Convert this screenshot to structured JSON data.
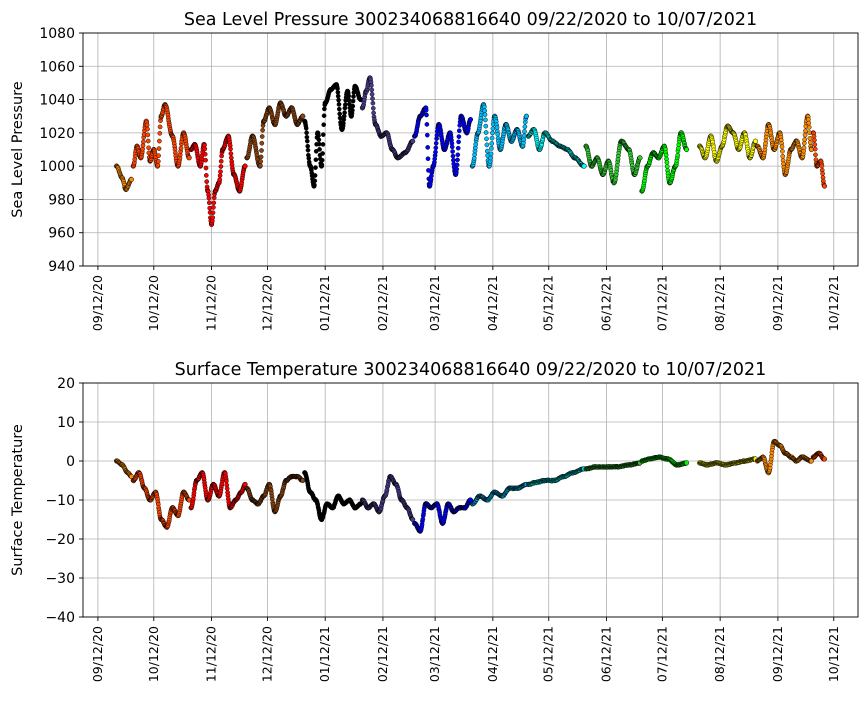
{
  "chart_data": [
    {
      "type": "scatter",
      "title": "Sea Level Pressure 300234068816640  09/22/2020 to 10/07/2021",
      "xlabel": "",
      "ylabel": "Sea Level Pressure",
      "ylim": [
        940,
        1080
      ],
      "yticks": [
        940,
        960,
        980,
        1000,
        1020,
        1040,
        1060,
        1080
      ],
      "xlim": [
        "2020-09-04",
        "2021-10-25"
      ],
      "xtick_labels": [
        "09/12/20",
        "10/12/20",
        "11/12/20",
        "12/12/20",
        "01/12/21",
        "02/12/21",
        "03/12/21",
        "04/12/21",
        "05/12/21",
        "06/12/21",
        "07/12/21",
        "08/12/21",
        "09/12/21",
        "10/12/21"
      ],
      "xtick_dates": [
        "2020-09-12",
        "2020-10-12",
        "2020-11-12",
        "2020-12-12",
        "2021-01-12",
        "2021-02-12",
        "2021-03-12",
        "2021-04-12",
        "2021-05-12",
        "2021-06-12",
        "2021-07-12",
        "2021-08-12",
        "2021-09-12",
        "2021-10-12"
      ],
      "grid": true,
      "color_note": "points colored by month",
      "series": [
        {
          "color": "#ff8c00",
          "x": [
            "2020-09-22",
            "2020-09-25",
            "2020-09-27",
            "2020-09-30"
          ],
          "y": [
            1000,
            993,
            986,
            992
          ]
        },
        {
          "color": "#ff4500",
          "x": [
            "2020-10-01",
            "2020-10-03",
            "2020-10-05",
            "2020-10-08",
            "2020-10-10",
            "2020-10-12",
            "2020-10-14",
            "2020-10-16",
            "2020-10-18",
            "2020-10-22",
            "2020-10-25",
            "2020-10-28",
            "2020-10-31"
          ],
          "y": [
            1000,
            1012,
            1005,
            1027,
            1003,
            1010,
            1000,
            1030,
            1037,
            1018,
            1000,
            1020,
            1005
          ]
        },
        {
          "color": "#ff0000",
          "x": [
            "2020-11-01",
            "2020-11-03",
            "2020-11-06",
            "2020-11-08",
            "2020-11-10",
            "2020-11-12",
            "2020-11-14",
            "2020-11-16",
            "2020-11-18",
            "2020-11-21",
            "2020-11-24",
            "2020-11-27",
            "2020-11-30"
          ],
          "y": [
            1010,
            1013,
            1000,
            1013,
            985,
            965,
            985,
            990,
            1010,
            1018,
            995,
            985,
            1000
          ]
        },
        {
          "color": "#8b4513",
          "x": [
            "2020-12-01",
            "2020-12-04",
            "2020-12-08",
            "2020-12-10",
            "2020-12-13",
            "2020-12-16",
            "2020-12-19",
            "2020-12-22",
            "2020-12-25",
            "2020-12-28",
            "2020-12-31"
          ],
          "y": [
            1005,
            1018,
            1000,
            1027,
            1035,
            1025,
            1038,
            1030,
            1035,
            1025,
            1030
          ]
        },
        {
          "color": "#000000",
          "x": [
            "2021-01-01",
            "2021-01-04",
            "2021-01-06",
            "2021-01-08",
            "2021-01-10",
            "2021-01-12",
            "2021-01-15",
            "2021-01-18",
            "2021-01-21",
            "2021-01-24",
            "2021-01-26",
            "2021-01-28",
            "2021-01-31"
          ],
          "y": [
            1027,
            1000,
            988,
            1020,
            1000,
            1038,
            1046,
            1049,
            1022,
            1045,
            1030,
            1048,
            1040
          ]
        },
        {
          "color": "#483d8b",
          "x": [
            "2021-02-01",
            "2021-02-03",
            "2021-02-05",
            "2021-02-08",
            "2021-02-11",
            "2021-02-14",
            "2021-02-17",
            "2021-02-20",
            "2021-02-24",
            "2021-02-28"
          ],
          "y": [
            1035,
            1045,
            1053,
            1025,
            1018,
            1020,
            1010,
            1005,
            1008,
            1015
          ]
        },
        {
          "color": "#0000ff",
          "x": [
            "2021-03-01",
            "2021-03-04",
            "2021-03-07",
            "2021-03-09",
            "2021-03-11",
            "2021-03-14",
            "2021-03-17",
            "2021-03-20",
            "2021-03-23",
            "2021-03-26",
            "2021-03-29",
            "2021-03-31"
          ],
          "y": [
            1018,
            1030,
            1035,
            988,
            1000,
            1025,
            1010,
            1020,
            995,
            1030,
            1020,
            1028
          ]
        },
        {
          "color": "#00bfff",
          "x": [
            "2021-04-01",
            "2021-04-04",
            "2021-04-07",
            "2021-04-10",
            "2021-04-13",
            "2021-04-16",
            "2021-04-19",
            "2021-04-22",
            "2021-04-25",
            "2021-04-28",
            "2021-04-30"
          ],
          "y": [
            1000,
            1020,
            1037,
            1000,
            1030,
            1010,
            1025,
            1015,
            1022,
            1012,
            1030
          ]
        },
        {
          "color": "#00ffff",
          "x": [
            "2021-05-01",
            "2021-05-04",
            "2021-05-07",
            "2021-05-10",
            "2021-05-14",
            "2021-05-18",
            "2021-05-22",
            "2021-05-26",
            "2021-05-31"
          ],
          "y": [
            1018,
            1022,
            1010,
            1020,
            1015,
            1012,
            1010,
            1005,
            1000
          ]
        },
        {
          "color": "#32cd32",
          "x": [
            "2021-06-01",
            "2021-06-04",
            "2021-06-07",
            "2021-06-10",
            "2021-06-13",
            "2021-06-16",
            "2021-06-20",
            "2021-06-24",
            "2021-06-27",
            "2021-06-30"
          ],
          "y": [
            1012,
            1000,
            1005,
            995,
            1003,
            990,
            1015,
            1010,
            995,
            1005
          ]
        },
        {
          "color": "#00ff00",
          "x": [
            "2021-07-01",
            "2021-07-04",
            "2021-07-07",
            "2021-07-10",
            "2021-07-13",
            "2021-07-16",
            "2021-07-19",
            "2021-07-22",
            "2021-07-25"
          ],
          "y": [
            985,
            1000,
            1008,
            1005,
            1012,
            990,
            1000,
            1020,
            1010
          ]
        },
        {
          "color": "#ffff00",
          "x": [
            "2021-08-01",
            "2021-08-04",
            "2021-08-07",
            "2021-08-10",
            "2021-08-13",
            "2021-08-16",
            "2021-08-19",
            "2021-08-22",
            "2021-08-25",
            "2021-08-28",
            "2021-08-31"
          ],
          "y": [
            1012,
            1005,
            1018,
            1003,
            1012,
            1024,
            1020,
            1010,
            1020,
            1005,
            1015
          ]
        },
        {
          "color": "#ff8c00",
          "x": [
            "2021-09-01",
            "2021-09-04",
            "2021-09-07",
            "2021-09-10",
            "2021-09-13",
            "2021-09-16",
            "2021-09-19",
            "2021-09-22",
            "2021-09-25",
            "2021-09-28",
            "2021-09-30"
          ],
          "y": [
            1012,
            1005,
            1025,
            1010,
            1020,
            995,
            1010,
            1015,
            1005,
            1030,
            1010
          ]
        },
        {
          "color": "#ff4500",
          "x": [
            "2021-10-01",
            "2021-10-03",
            "2021-10-05",
            "2021-10-07"
          ],
          "y": [
            1020,
            1000,
            1003,
            988
          ]
        }
      ]
    },
    {
      "type": "scatter",
      "title": "Surface Temperature 300234068816640  09/22/2020 to 10/07/2021",
      "xlabel": "",
      "ylabel": "Surface Temperature",
      "ylim": [
        -40,
        20
      ],
      "yticks": [
        -40,
        -30,
        -20,
        -10,
        0,
        10,
        20
      ],
      "ytick_labels": [
        "−40",
        "−30",
        "−20",
        "−10",
        "0",
        "10",
        "20"
      ],
      "xlim": [
        "2020-09-04",
        "2021-10-25"
      ],
      "xtick_labels": [
        "09/12/20",
        "10/12/20",
        "11/12/20",
        "12/12/20",
        "01/12/21",
        "02/12/21",
        "03/12/21",
        "04/12/21",
        "05/12/21",
        "06/12/21",
        "07/12/21",
        "08/12/21",
        "09/12/21",
        "10/12/21"
      ],
      "xtick_dates": [
        "2020-09-12",
        "2020-10-12",
        "2020-11-12",
        "2020-12-12",
        "2021-01-12",
        "2021-02-12",
        "2021-03-12",
        "2021-04-12",
        "2021-05-12",
        "2021-06-12",
        "2021-07-12",
        "2021-08-12",
        "2021-09-12",
        "2021-10-12"
      ],
      "grid": true,
      "color_note": "points colored by month",
      "series": [
        {
          "color": "#ff8c00",
          "x": [
            "2020-09-22",
            "2020-09-25",
            "2020-09-28",
            "2020-09-30"
          ],
          "y": [
            0,
            -1,
            -3,
            -4
          ]
        },
        {
          "color": "#ff4500",
          "x": [
            "2020-10-01",
            "2020-10-04",
            "2020-10-07",
            "2020-10-10",
            "2020-10-13",
            "2020-10-16",
            "2020-10-19",
            "2020-10-22",
            "2020-10-25",
            "2020-10-28",
            "2020-10-31"
          ],
          "y": [
            -5,
            -3,
            -7,
            -10,
            -8,
            -15,
            -17,
            -12,
            -14,
            -8,
            -10
          ]
        },
        {
          "color": "#ff0000",
          "x": [
            "2020-11-01",
            "2020-11-04",
            "2020-11-07",
            "2020-11-10",
            "2020-11-13",
            "2020-11-16",
            "2020-11-19",
            "2020-11-22",
            "2020-11-25",
            "2020-11-28",
            "2020-11-30"
          ],
          "y": [
            -12,
            -5,
            -3,
            -10,
            -6,
            -9,
            -3,
            -12,
            -10,
            -8,
            -6
          ]
        },
        {
          "color": "#8b4513",
          "x": [
            "2020-12-01",
            "2020-12-04",
            "2020-12-07",
            "2020-12-10",
            "2020-12-13",
            "2020-12-16",
            "2020-12-19",
            "2020-12-22",
            "2020-12-25",
            "2020-12-28",
            "2020-12-31"
          ],
          "y": [
            -7,
            -10,
            -11,
            -9,
            -6,
            -13,
            -9,
            -5,
            -4,
            -4,
            -5
          ]
        },
        {
          "color": "#000000",
          "x": [
            "2021-01-01",
            "2021-01-04",
            "2021-01-07",
            "2021-01-10",
            "2021-01-13",
            "2021-01-16",
            "2021-01-19",
            "2021-01-22",
            "2021-01-25",
            "2021-01-28",
            "2021-01-31"
          ],
          "y": [
            -3,
            -8,
            -10,
            -15,
            -11,
            -12,
            -9,
            -11,
            -10,
            -12,
            -11
          ]
        },
        {
          "color": "#483d8b",
          "x": [
            "2021-02-01",
            "2021-02-04",
            "2021-02-07",
            "2021-02-10",
            "2021-02-13",
            "2021-02-16",
            "2021-02-19",
            "2021-02-22",
            "2021-02-25",
            "2021-02-28"
          ],
          "y": [
            -10,
            -12,
            -11,
            -13,
            -9,
            -4,
            -6,
            -10,
            -12,
            -15
          ]
        },
        {
          "color": "#0000ff",
          "x": [
            "2021-03-01",
            "2021-03-04",
            "2021-03-07",
            "2021-03-10",
            "2021-03-13",
            "2021-03-16",
            "2021-03-19",
            "2021-03-22",
            "2021-03-25",
            "2021-03-28",
            "2021-03-31"
          ],
          "y": [
            -16,
            -18,
            -11,
            -12,
            -11,
            -16,
            -11,
            -13,
            -12,
            -12,
            -10
          ]
        },
        {
          "color": "#00bfff",
          "x": [
            "2021-04-01",
            "2021-04-05",
            "2021-04-09",
            "2021-04-13",
            "2021-04-17",
            "2021-04-21",
            "2021-04-25",
            "2021-04-30"
          ],
          "y": [
            -11,
            -9,
            -10,
            -8,
            -9,
            -7,
            -7,
            -6
          ]
        },
        {
          "color": "#00ffff",
          "x": [
            "2021-05-01",
            "2021-05-05",
            "2021-05-10",
            "2021-05-15",
            "2021-05-20",
            "2021-05-25",
            "2021-05-31"
          ],
          "y": [
            -6,
            -5.5,
            -5,
            -5,
            -4,
            -3,
            -2
          ]
        },
        {
          "color": "#32cd32",
          "x": [
            "2021-06-01",
            "2021-06-06",
            "2021-06-12",
            "2021-06-18",
            "2021-06-24",
            "2021-06-30"
          ],
          "y": [
            -2,
            -1.5,
            -1.5,
            -1.5,
            -1,
            -0.5
          ]
        },
        {
          "color": "#00ff00",
          "x": [
            "2021-07-01",
            "2021-07-05",
            "2021-07-10",
            "2021-07-15",
            "2021-07-20",
            "2021-07-25"
          ],
          "y": [
            0,
            0.5,
            1,
            0.5,
            -1,
            -0.5
          ]
        },
        {
          "color": "#ffff00",
          "x": [
            "2021-08-01",
            "2021-08-05",
            "2021-08-10",
            "2021-08-15",
            "2021-08-20",
            "2021-08-25",
            "2021-08-31"
          ],
          "y": [
            -0.5,
            -1,
            -0.5,
            -1,
            -0.5,
            0,
            0.5
          ]
        },
        {
          "color": "#ff8c00",
          "x": [
            "2021-09-01",
            "2021-09-04",
            "2021-09-07",
            "2021-09-10",
            "2021-09-13",
            "2021-09-16",
            "2021-09-19",
            "2021-09-22",
            "2021-09-25",
            "2021-09-30"
          ],
          "y": [
            0,
            1,
            -3,
            5,
            4,
            2,
            1,
            0,
            1,
            0
          ]
        },
        {
          "color": "#ff4500",
          "x": [
            "2021-10-01",
            "2021-10-04",
            "2021-10-07"
          ],
          "y": [
            1,
            2,
            0.5
          ]
        }
      ]
    }
  ]
}
